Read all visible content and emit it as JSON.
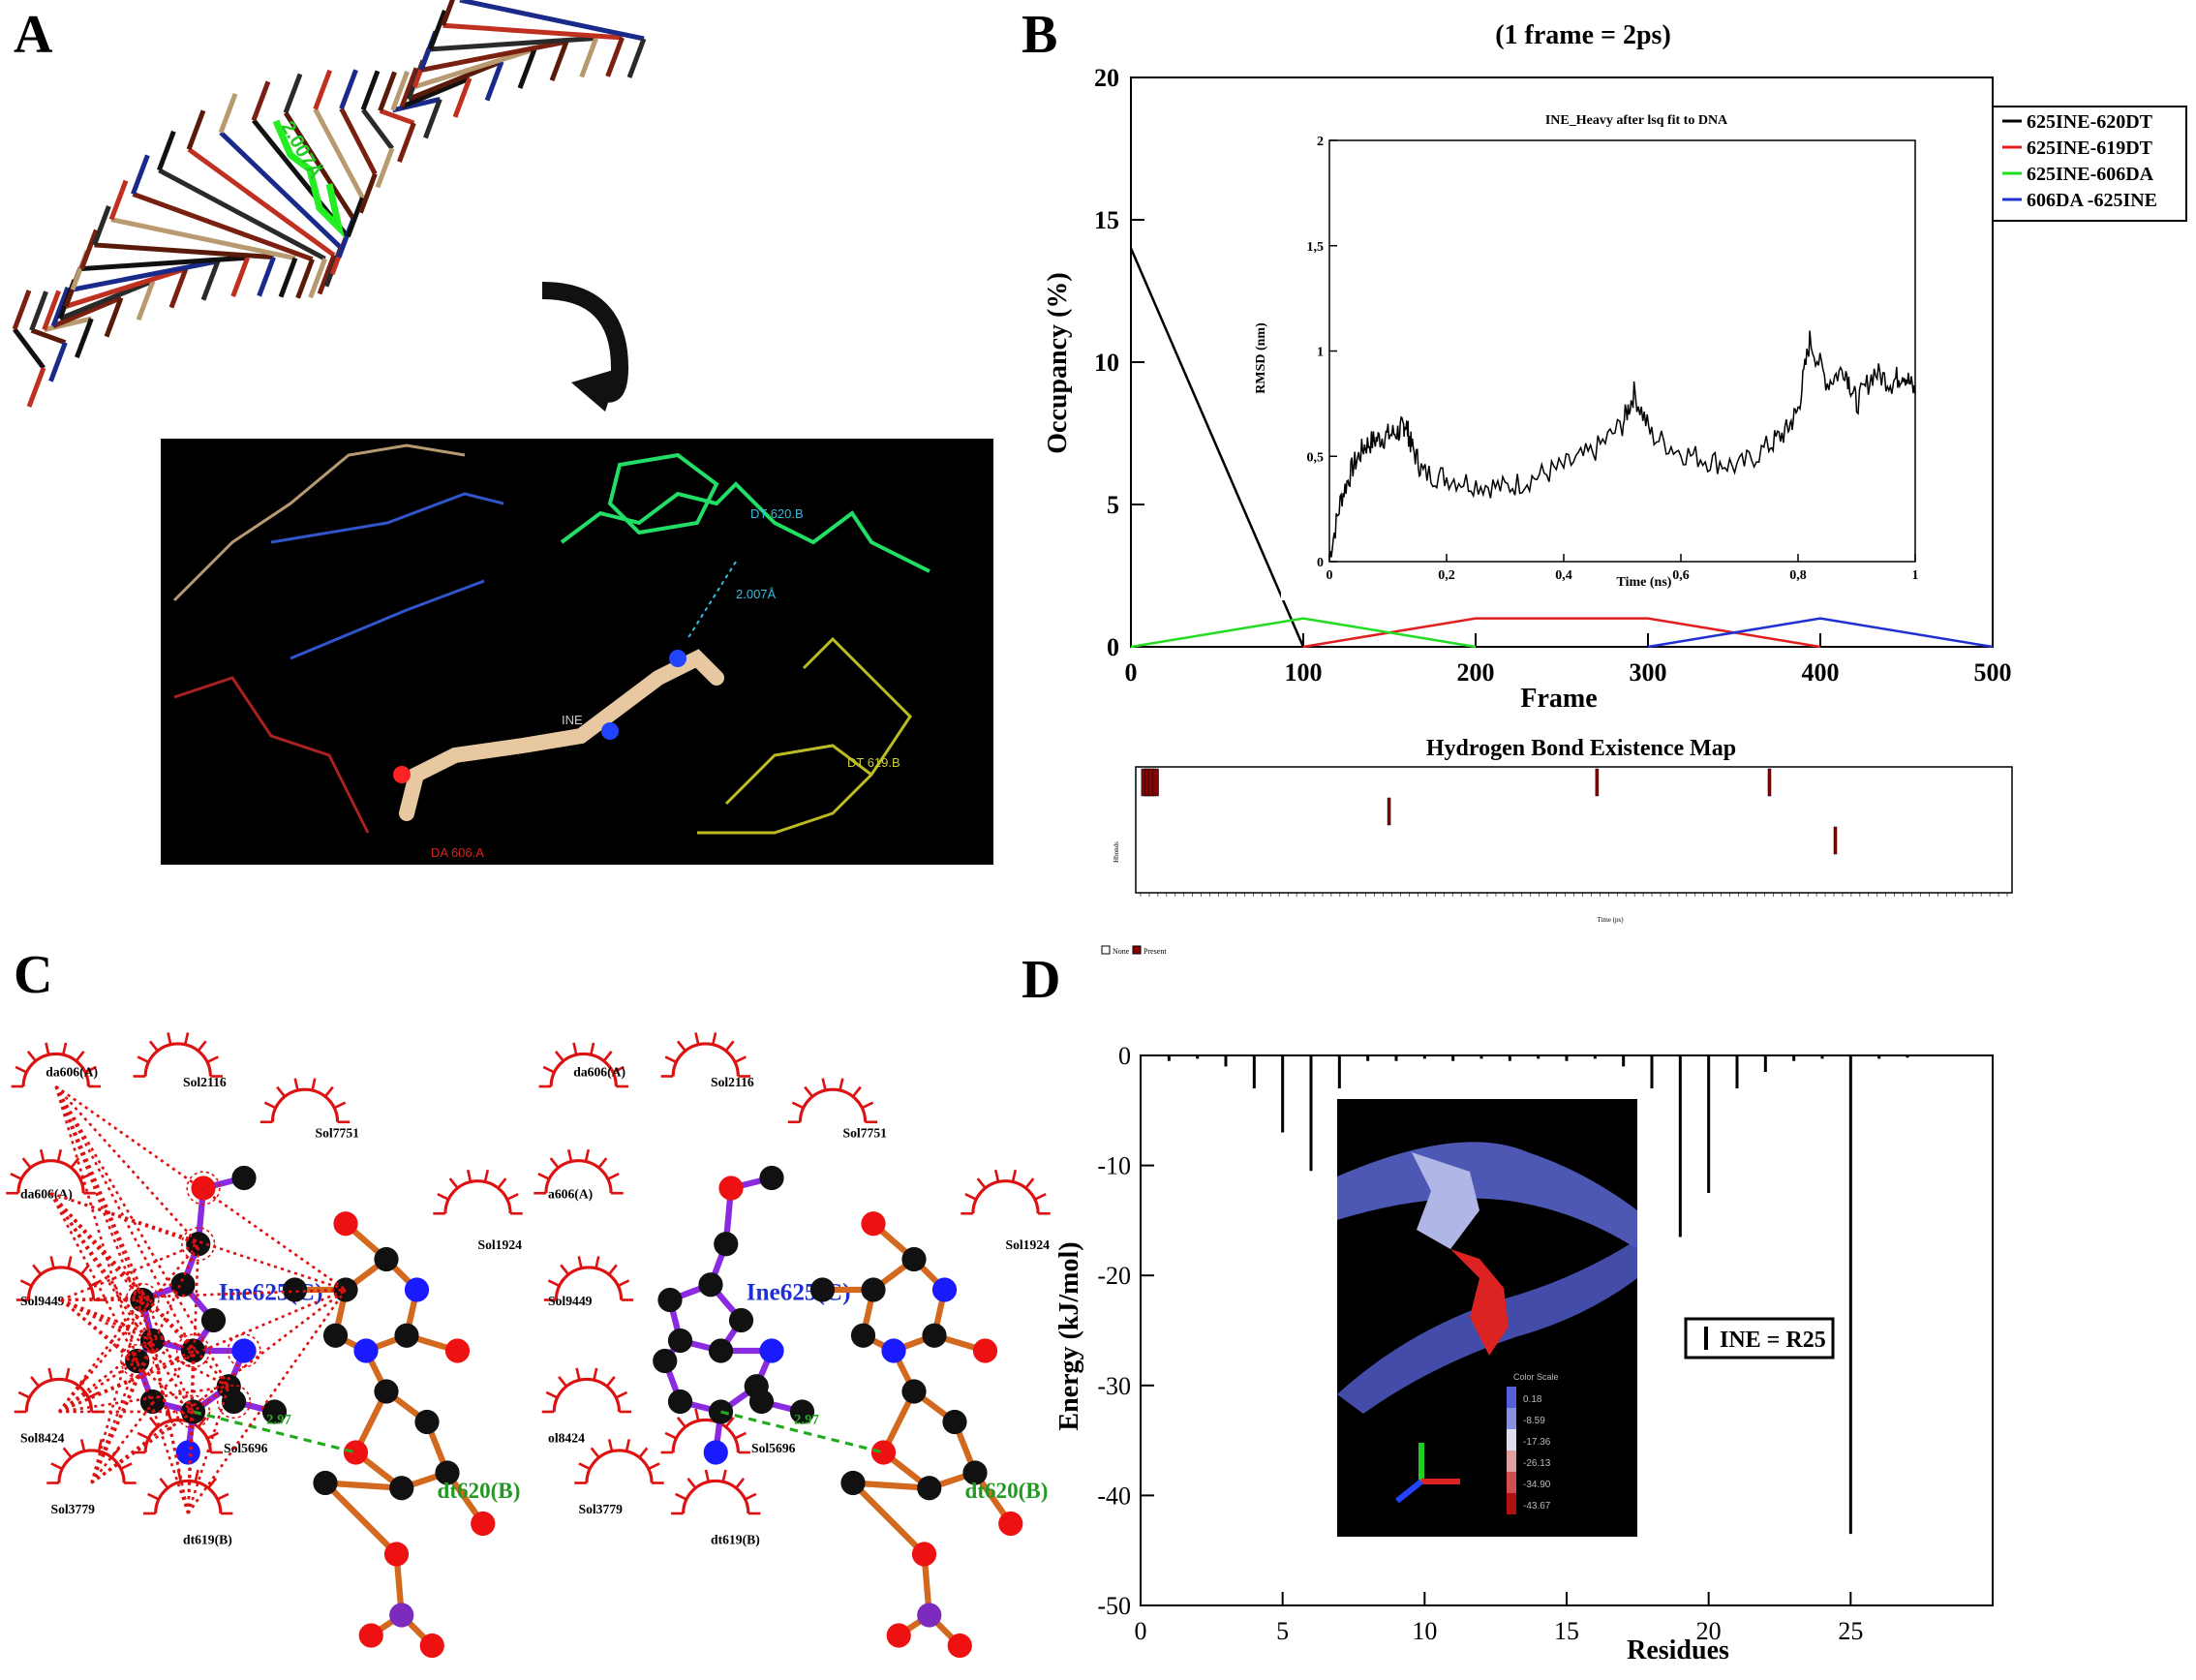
{
  "panels": {
    "a": "A",
    "b": "B",
    "c": "C",
    "d": "D"
  },
  "panel_a": {
    "distance_top": "2.007Å",
    "distance_bottom": "2.007Å",
    "label_dt620": "DT 620.B",
    "label_dt619": "DT 619.B",
    "label_ine": "INE",
    "label_da606": "DA 606.A"
  },
  "panel_c": {
    "ine_label": "Ine625(C)",
    "dt_label": "dt620(B)",
    "hb_dist": "2.97",
    "left_labels": [
      "da606(A)",
      "Sol2116",
      "Sol7751",
      "da606(A)",
      "Sol1924",
      "Sol9449",
      "Sol8424",
      "Sol5696",
      "Sol3779",
      "dt619(B)"
    ],
    "right_labels": [
      "da606(A)",
      "Sol2116",
      "Sol7751",
      "a606(A)",
      "Sol1924",
      "Sol9449",
      "ol8424",
      "Sol5696",
      "Sol3779",
      "dt619(B)"
    ]
  },
  "colors": {
    "black": "#000000",
    "red": "#e02020",
    "green": "#22dd22",
    "blue": "#2030d0",
    "hb_red": "#8b0000",
    "atom_blue": "#1a1aff",
    "bond_purple": "#8a2be2",
    "bond_orange": "#d2691e"
  },
  "chart_data": [
    {
      "id": "B_main",
      "type": "line",
      "title": "(1 frame = 2ps)",
      "xlabel": "Frame",
      "ylabel": "Occupancy (%)",
      "xlim": [
        0,
        500
      ],
      "ylim": [
        0,
        20
      ],
      "xticks": [
        0,
        100,
        200,
        300,
        400,
        500
      ],
      "yticks": [
        0,
        5,
        10,
        15,
        20
      ],
      "legend_position": "right",
      "series": [
        {
          "name": "625INE-620DT",
          "color": "#000000",
          "x": [
            0,
            100
          ],
          "y": [
            14,
            0
          ]
        },
        {
          "name": "625INE-619DT",
          "color": "#e02020",
          "x": [
            100,
            200,
            300,
            400
          ],
          "y": [
            0,
            1,
            1,
            0
          ]
        },
        {
          "name": "625INE-606DA",
          "color": "#22dd22",
          "x": [
            0,
            100,
            200
          ],
          "y": [
            0,
            1,
            0
          ]
        },
        {
          "name": "606DA -625INE",
          "color": "#2030d0",
          "x": [
            300,
            400,
            500
          ],
          "y": [
            0,
            1,
            0
          ]
        }
      ]
    },
    {
      "id": "B_inset",
      "type": "line",
      "title": "INE_Heavy after lsq fit to DNA",
      "xlabel": "Time (ns)",
      "ylabel": "RMSD (nm)",
      "xlim": [
        0,
        1
      ],
      "ylim": [
        0,
        2
      ],
      "xticks": [
        "0",
        "0,2",
        "0,4",
        "0,6",
        "0,8",
        "1"
      ],
      "yticks": [
        "0",
        "0,5",
        "1",
        "1,5",
        "2"
      ],
      "series": [
        {
          "name": "",
          "x": [
            0,
            0.02,
            0.04,
            0.06,
            0.08,
            0.1,
            0.12,
            0.13,
            0.14,
            0.16,
            0.2,
            0.25,
            0.3,
            0.35,
            0.4,
            0.45,
            0.5,
            0.52,
            0.55,
            0.6,
            0.65,
            0.7,
            0.75,
            0.78,
            0.8,
            0.82,
            0.85,
            0.88,
            0.9,
            0.93,
            0.96,
            0.98,
            1.0
          ],
          "y": [
            0.02,
            0.3,
            0.45,
            0.55,
            0.58,
            0.6,
            0.62,
            0.66,
            0.55,
            0.42,
            0.4,
            0.37,
            0.35,
            0.4,
            0.45,
            0.52,
            0.65,
            0.8,
            0.6,
            0.52,
            0.48,
            0.45,
            0.55,
            0.62,
            0.72,
            1.05,
            0.85,
            0.92,
            0.75,
            0.9,
            0.85,
            0.9,
            0.8
          ]
        }
      ]
    },
    {
      "id": "B_map",
      "type": "heatmap",
      "title": "Hydrogen Bond Existence Map",
      "xlabel": "Time (ps)",
      "ylabel": "Hbonds",
      "legend": [
        "None",
        "Present"
      ],
      "marks": [
        {
          "row": 3,
          "x": 1
        },
        {
          "row": 3,
          "x": 5
        },
        {
          "row": 3,
          "x": 9
        },
        {
          "row": 3,
          "x": 14
        },
        {
          "row": 2,
          "x": 285
        },
        {
          "row": 3,
          "x": 525
        },
        {
          "row": 3,
          "x": 724
        },
        {
          "row": 1,
          "x": 800
        }
      ],
      "xlim": [
        0,
        1000
      ]
    },
    {
      "id": "D",
      "type": "bar",
      "xlabel": "Residues",
      "ylabel": "Energy (kJ/mol)",
      "xlim": [
        0,
        30
      ],
      "ylim": [
        -50,
        0
      ],
      "xticks": [
        0,
        5,
        10,
        15,
        20,
        25
      ],
      "yticks": [
        0,
        -10,
        -20,
        -30,
        -40,
        -50
      ],
      "annotation": "INE = R25",
      "x": [
        1,
        2,
        3,
        4,
        5,
        6,
        7,
        8,
        9,
        10,
        11,
        12,
        13,
        14,
        15,
        16,
        17,
        18,
        19,
        20,
        21,
        22,
        23,
        24,
        25,
        26,
        27
      ],
      "values": [
        -0.5,
        -0.3,
        -1,
        -3,
        -7,
        -10.5,
        -3,
        -0.5,
        -0.5,
        -0.3,
        -0.5,
        -0.3,
        -0.5,
        -0.3,
        -0.5,
        -0.3,
        -1,
        -3,
        -16.5,
        -12.5,
        -3,
        -1.5,
        -0.5,
        -0.3,
        -43.5,
        -0.3,
        -0.2
      ],
      "inset_color_scale": [
        "0.18",
        "-8.59",
        "-17.36",
        "-26.13",
        "-34.90",
        "-43.67"
      ],
      "inset_scale_label": "Color Scale"
    }
  ]
}
